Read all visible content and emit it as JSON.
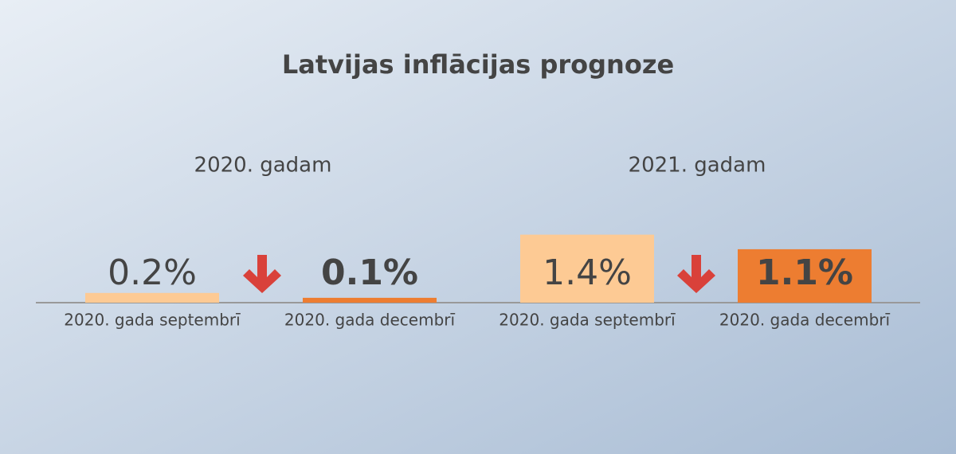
{
  "title": "Latvijas inflācijas prognoze",
  "chart_data": [
    {
      "type": "bar",
      "title": "2020. gadam",
      "categories": [
        "2020. gada septembrī",
        "2020. gada decembrī"
      ],
      "values": [
        0.2,
        0.1
      ],
      "value_labels": [
        "0.2%",
        "0.1%"
      ],
      "colors": [
        "#fdca94",
        "#ed7d31"
      ]
    },
    {
      "type": "bar",
      "title": "2021. gadam",
      "categories": [
        "2020. gada septembrī",
        "2020. gada decembrī"
      ],
      "values": [
        1.4,
        1.1
      ],
      "value_labels": [
        "1.4%",
        "1.1%"
      ],
      "colors": [
        "#fdca94",
        "#ed7d31"
      ]
    }
  ]
}
